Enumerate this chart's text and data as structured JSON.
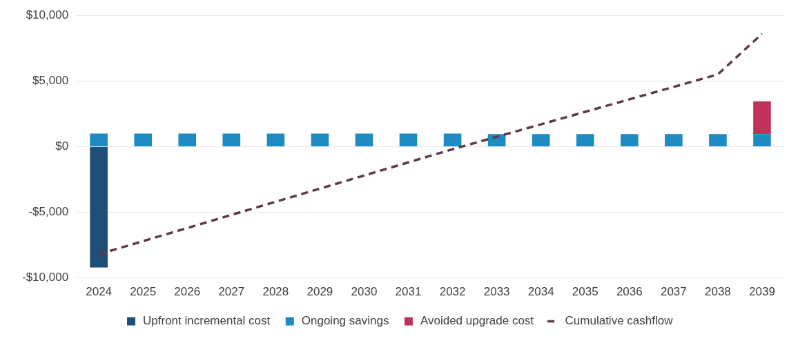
{
  "chart_data": {
    "type": "bar",
    "stacked": true,
    "categories": [
      "2024",
      "2025",
      "2026",
      "2027",
      "2028",
      "2029",
      "2030",
      "2031",
      "2032",
      "2033",
      "2034",
      "2035",
      "2036",
      "2037",
      "2038",
      "2039"
    ],
    "series": [
      {
        "name": "Upfront incremental cost",
        "color": "#1f4e79",
        "values": [
          -9200,
          null,
          null,
          null,
          null,
          null,
          null,
          null,
          null,
          null,
          null,
          null,
          null,
          null,
          null,
          null
        ]
      },
      {
        "name": "Ongoing savings",
        "color": "#1e8bc3",
        "values": [
          1000,
          1000,
          1000,
          1000,
          1000,
          1000,
          1000,
          1000,
          1000,
          950,
          950,
          950,
          950,
          950,
          950,
          950
        ]
      },
      {
        "name": "Avoided upgrade cost",
        "color": "#c0325a",
        "values": [
          null,
          null,
          null,
          null,
          null,
          null,
          null,
          null,
          null,
          null,
          null,
          null,
          null,
          null,
          null,
          2500
        ]
      },
      {
        "name": "Cumulative cashflow",
        "type": "line",
        "color": "#5a3a4a",
        "line_style": "dashed",
        "marker": "none",
        "values": [
          -8200,
          -7200,
          -6200,
          -5200,
          -4200,
          -3200,
          -2200,
          -1200,
          -200,
          750,
          1700,
          2650,
          3600,
          4550,
          5500,
          8600
        ]
      }
    ],
    "ylim": [
      -10000,
      10000
    ],
    "yticks": [
      {
        "value": -10000,
        "label": "-$10,000"
      },
      {
        "value": -5000,
        "label": "-$5,000"
      },
      {
        "value": 0,
        "label": "$0"
      },
      {
        "value": 5000,
        "label": "$5,000"
      },
      {
        "value": 10000,
        "label": "$10,000"
      }
    ],
    "grid": "y",
    "legend": "bottom"
  }
}
